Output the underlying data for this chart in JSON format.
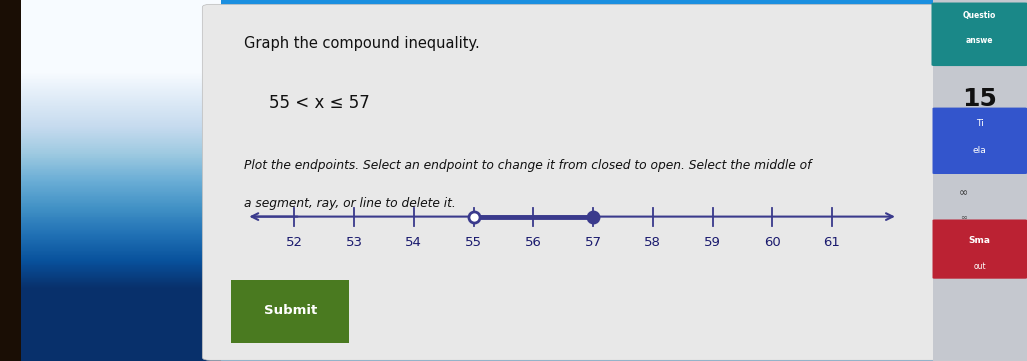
{
  "title": "Graph the compound inequality.",
  "inequality": "55 < x ≤ 57",
  "instruction_line1": "Plot the endpoints. Select an endpoint to change it from closed to open. Select the middle of",
  "instruction_line2": "a segment, ray, or line to delete it.",
  "tick_values": [
    52,
    53,
    54,
    55,
    56,
    57,
    58,
    59,
    60,
    61
  ],
  "open_endpoint": 55,
  "closed_endpoint": 57,
  "segment_color": "#3a3a8c",
  "line_color": "#3a3a8c",
  "main_panel_color": "#e8e8e8",
  "left_bg_color_top": "#1a8fe0",
  "left_bg_color_bottom": "#a0d8ef",
  "dark_strip_color": "#2a1a0a",
  "submit_button_color": "#4a7a20",
  "submit_text": "Submit",
  "right_teal_color": "#1a8888",
  "right_light_color": "#c8ccd4",
  "right_blue_color": "#3355cc",
  "right_red_color": "#bb2233",
  "right_text_questic": "Questio",
  "right_text_answer": "answe",
  "right_number": "15",
  "right_ti": "Ti",
  "right_ela": "ela",
  "right_inf": "∞",
  "right_sma": "Sma",
  "right_out": "out"
}
